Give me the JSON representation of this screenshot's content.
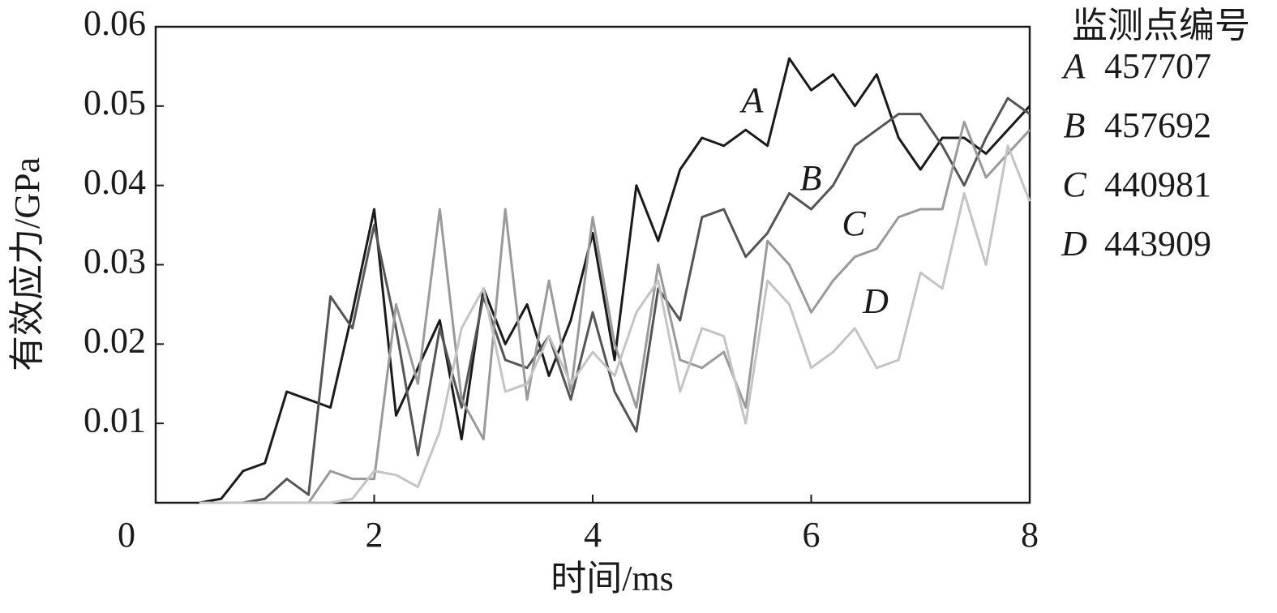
{
  "chart_data": {
    "type": "line",
    "x_label": "时间/ms",
    "y_label": "有效应力/GPa",
    "legend_title": "监测点编号",
    "x": [
      0.4,
      0.6,
      0.8,
      1.0,
      1.2,
      1.4,
      1.6,
      1.8,
      2.0,
      2.2,
      2.4,
      2.6,
      2.8,
      3.0,
      3.2,
      3.4,
      3.6,
      3.8,
      4.0,
      4.2,
      4.4,
      4.6,
      4.8,
      5.0,
      5.2,
      5.4,
      5.6,
      5.8,
      6.0,
      6.2,
      6.4,
      6.6,
      6.8,
      7.0,
      7.2,
      7.4,
      7.6,
      7.8,
      8.0
    ],
    "series": [
      {
        "name": "A",
        "label": "457707",
        "color": "#1a1a1a",
        "values": [
          0,
          0.0005,
          0.004,
          0.005,
          0.014,
          0.013,
          0.012,
          0.024,
          0.037,
          0.011,
          0.017,
          0.023,
          0.008,
          0.027,
          0.02,
          0.025,
          0.016,
          0.023,
          0.034,
          0.018,
          0.04,
          0.033,
          0.042,
          0.046,
          0.045,
          0.047,
          0.045,
          0.056,
          0.052,
          0.054,
          0.05,
          0.054,
          0.046,
          0.042,
          0.046,
          0.046,
          0.044,
          0.047,
          0.05
        ]
      },
      {
        "name": "B",
        "label": "457692",
        "color": "#555555",
        "values": [
          0,
          0,
          0,
          0.0005,
          0.003,
          0.001,
          0.026,
          0.022,
          0.035,
          0.022,
          0.006,
          0.022,
          0.012,
          0.026,
          0.018,
          0.017,
          0.021,
          0.013,
          0.024,
          0.014,
          0.009,
          0.027,
          0.023,
          0.036,
          0.037,
          0.031,
          0.034,
          0.039,
          0.037,
          0.04,
          0.045,
          0.047,
          0.049,
          0.049,
          0.045,
          0.04,
          0.046,
          0.051,
          0.049
        ]
      },
      {
        "name": "C",
        "label": "440981",
        "color": "#9a9a9a",
        "values": [
          0,
          0,
          0,
          0,
          0,
          0,
          0.004,
          0.003,
          0.003,
          0.025,
          0.015,
          0.037,
          0.013,
          0.008,
          0.037,
          0.013,
          0.028,
          0.014,
          0.036,
          0.02,
          0.012,
          0.03,
          0.018,
          0.017,
          0.019,
          0.012,
          0.033,
          0.03,
          0.024,
          0.028,
          0.031,
          0.032,
          0.036,
          0.037,
          0.037,
          0.048,
          0.041,
          0.044,
          0.047
        ]
      },
      {
        "name": "D",
        "label": "443909",
        "color": "#c4c4c4",
        "values": [
          0,
          0,
          0,
          0,
          0,
          0,
          0,
          0.0005,
          0.004,
          0.0035,
          0.002,
          0.009,
          0.022,
          0.027,
          0.014,
          0.015,
          0.021,
          0.015,
          0.019,
          0.016,
          0.024,
          0.028,
          0.014,
          0.022,
          0.021,
          0.01,
          0.028,
          0.025,
          0.017,
          0.019,
          0.022,
          0.017,
          0.018,
          0.029,
          0.027,
          0.039,
          0.03,
          0.045,
          0.038
        ]
      }
    ],
    "xlim": [
      0,
      8
    ],
    "xticks": [
      0,
      2,
      4,
      6,
      8
    ],
    "ylim": [
      0,
      0.06
    ],
    "yticks": [
      0.01,
      0.02,
      0.03,
      0.04,
      0.05,
      0.06
    ],
    "grid": false
  }
}
